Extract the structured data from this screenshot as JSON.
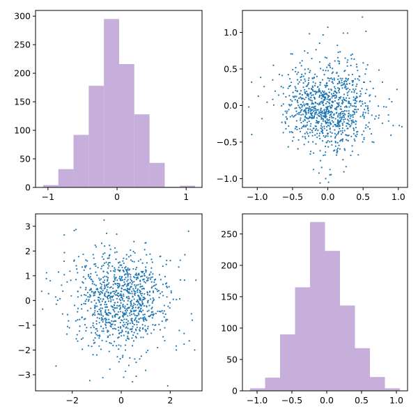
{
  "figure": {
    "background": "#ffffff"
  },
  "chart_data": [
    {
      "id": "top-left",
      "type": "histogram",
      "color": "#c7afdb",
      "bin_edges": [
        -1.07,
        -0.85,
        -0.63,
        -0.41,
        -0.19,
        0.03,
        0.25,
        0.47,
        0.69,
        0.91,
        1.13
      ],
      "counts": [
        4,
        32,
        92,
        178,
        295,
        216,
        128,
        43,
        1,
        3
      ],
      "xlim": [
        -1.18,
        1.23
      ],
      "ylim": [
        0,
        310
      ],
      "xticks": [
        {
          "value": -1,
          "label": "−1"
        },
        {
          "value": 0,
          "label": "0"
        },
        {
          "value": 1,
          "label": "1"
        }
      ],
      "yticks": [
        {
          "value": 0,
          "label": "0"
        },
        {
          "value": 50,
          "label": "50"
        },
        {
          "value": 100,
          "label": "100"
        },
        {
          "value": 150,
          "label": "150"
        },
        {
          "value": 200,
          "label": "200"
        },
        {
          "value": 250,
          "label": "250"
        },
        {
          "value": 300,
          "label": "300"
        }
      ],
      "title": "",
      "xlabel": "",
      "ylabel": "",
      "grid": false
    },
    {
      "id": "top-right",
      "type": "scatter",
      "color": "#1f77b4",
      "points_seed": 7,
      "points_count": 1000,
      "distribution": {
        "x_mean": 0,
        "x_std": 0.3,
        "y_mean": 0,
        "y_std": 0.3
      },
      "points": [
        [
          -1.08,
          0.32
        ],
        [
          -1.12,
          -0.02
        ],
        [
          1.05,
          -0.29
        ],
        [
          0.98,
          0.22
        ],
        [
          0.49,
          1.21
        ],
        [
          0.0,
          1.07
        ],
        [
          0.28,
          0.99
        ],
        [
          0.22,
          0.99
        ],
        [
          0.01,
          -1.05
        ],
        [
          -0.11,
          -1.06
        ],
        [
          -0.03,
          -1.0
        ],
        [
          0.87,
          0.09
        ]
      ],
      "xlim": [
        -1.21,
        1.13
      ],
      "ylim": [
        -1.12,
        1.3
      ],
      "xticks": [
        {
          "value": -1,
          "label": "−1.0"
        },
        {
          "value": -0.5,
          "label": "−0.5"
        },
        {
          "value": 0,
          "label": "0.0"
        },
        {
          "value": 0.5,
          "label": "0.5"
        },
        {
          "value": 1,
          "label": "1.0"
        }
      ],
      "yticks": [
        {
          "value": -1,
          "label": "−1.0"
        },
        {
          "value": -0.5,
          "label": "−0.5"
        },
        {
          "value": 0,
          "label": "0.0"
        },
        {
          "value": 0.5,
          "label": "0.5"
        },
        {
          "value": 1,
          "label": "1.0"
        }
      ],
      "title": "",
      "xlabel": "",
      "ylabel": "",
      "grid": false
    },
    {
      "id": "bottom-left",
      "type": "scatter",
      "color": "#1f77b4",
      "points_seed": 13,
      "points_count": 1000,
      "distribution": {
        "x_mean": 0,
        "x_std": 1.0,
        "y_mean": 0,
        "y_std": 1.0
      },
      "points": [
        [
          -3.25,
          0.37
        ],
        [
          -3.05,
          1.12
        ],
        [
          2.75,
          2.8
        ],
        [
          3.05,
          0.82
        ],
        [
          3.0,
          -2.0
        ],
        [
          1.9,
          -3.45
        ],
        [
          -0.7,
          3.25
        ],
        [
          2.6,
          1.85
        ],
        [
          -2.65,
          -0.15
        ],
        [
          -0.75,
          -3.12
        ],
        [
          0.1,
          -3.1
        ],
        [
          2.25,
          -2.0
        ]
      ],
      "xlim": [
        -3.5,
        3.3
      ],
      "ylim": [
        -3.65,
        3.5
      ],
      "xticks": [
        {
          "value": -2,
          "label": "−2"
        },
        {
          "value": 0,
          "label": "0"
        },
        {
          "value": 2,
          "label": "2"
        }
      ],
      "yticks": [
        {
          "value": -3,
          "label": "−3"
        },
        {
          "value": -2,
          "label": "−2"
        },
        {
          "value": -1,
          "label": "−1"
        },
        {
          "value": 0,
          "label": "0"
        },
        {
          "value": 1,
          "label": "1"
        },
        {
          "value": 2,
          "label": "2"
        },
        {
          "value": 3,
          "label": "3"
        }
      ],
      "title": "",
      "xlabel": "",
      "ylabel": "",
      "grid": false
    },
    {
      "id": "bottom-right",
      "type": "histogram",
      "color": "#c7afdb",
      "bin_edges": [
        -1.1,
        -0.885,
        -0.67,
        -0.455,
        -0.24,
        -0.025,
        0.19,
        0.405,
        0.62,
        0.835,
        1.05
      ],
      "counts": [
        4,
        21,
        90,
        165,
        269,
        223,
        136,
        68,
        22,
        4
      ],
      "xlim": [
        -1.21,
        1.16
      ],
      "ylim": [
        0,
        282
      ],
      "xticks": [
        {
          "value": -1,
          "label": "−1.0"
        },
        {
          "value": -0.5,
          "label": "−0.5"
        },
        {
          "value": 0,
          "label": "0.0"
        },
        {
          "value": 0.5,
          "label": "0.5"
        },
        {
          "value": 1,
          "label": "1.0"
        }
      ],
      "yticks": [
        {
          "value": 0,
          "label": "0"
        },
        {
          "value": 50,
          "label": "50"
        },
        {
          "value": 100,
          "label": "100"
        },
        {
          "value": 150,
          "label": "150"
        },
        {
          "value": 200,
          "label": "200"
        },
        {
          "value": 250,
          "label": "250"
        }
      ],
      "title": "",
      "xlabel": "",
      "ylabel": "",
      "grid": false
    }
  ]
}
